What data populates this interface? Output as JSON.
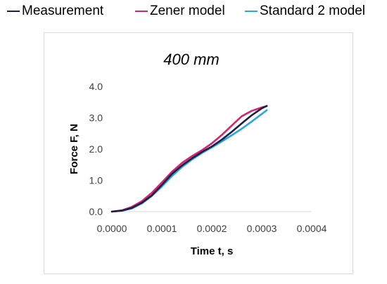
{
  "chart_data": {
    "type": "line",
    "title": "400 mm",
    "xlabel": "Time t, s",
    "ylabel": "Force F, N",
    "xlim": [
      0,
      0.0004
    ],
    "ylim": [
      0,
      4.0
    ],
    "x_ticks": [
      "0.0000",
      "0.0001",
      "0.0002",
      "0.0003",
      "0.0004"
    ],
    "y_ticks": [
      "0.0",
      "1.0",
      "2.0",
      "3.0",
      "4.0"
    ],
    "grid": false,
    "legend_position": "top",
    "series": [
      {
        "name": "Measurement",
        "color": "#1b1f4b",
        "x": [
          0,
          2e-05,
          4e-05,
          6e-05,
          8e-05,
          0.0001,
          0.00012,
          0.00014,
          0.00016,
          0.00018,
          0.0002,
          0.00022,
          0.00024,
          0.00026,
          0.00028,
          0.0003,
          0.00031
        ],
        "y": [
          0.0,
          0.03,
          0.12,
          0.28,
          0.52,
          0.85,
          1.2,
          1.47,
          1.7,
          1.9,
          2.08,
          2.3,
          2.55,
          2.82,
          3.08,
          3.3,
          3.38
        ]
      },
      {
        "name": "Zener model",
        "color": "#d6246e",
        "x": [
          0,
          2e-05,
          4e-05,
          6e-05,
          8e-05,
          0.0001,
          0.00012,
          0.00014,
          0.00016,
          0.00018,
          0.0002,
          0.00022,
          0.00024,
          0.00026,
          0.00028,
          0.0003,
          0.00031
        ],
        "y": [
          0.0,
          0.04,
          0.15,
          0.33,
          0.6,
          0.93,
          1.27,
          1.55,
          1.77,
          1.96,
          2.18,
          2.45,
          2.75,
          3.05,
          3.22,
          3.33,
          3.37
        ]
      },
      {
        "name": "Standard 2 model",
        "color": "#29a8e0",
        "x": [
          0,
          2e-05,
          4e-05,
          6e-05,
          8e-05,
          0.0001,
          0.00012,
          0.00014,
          0.00016,
          0.00018,
          0.0002,
          0.00022,
          0.00024,
          0.00026,
          0.00028,
          0.0003,
          0.00031
        ],
        "y": [
          0.0,
          0.03,
          0.1,
          0.26,
          0.5,
          0.8,
          1.13,
          1.42,
          1.66,
          1.87,
          2.05,
          2.24,
          2.44,
          2.65,
          2.88,
          3.12,
          3.24
        ]
      }
    ]
  }
}
